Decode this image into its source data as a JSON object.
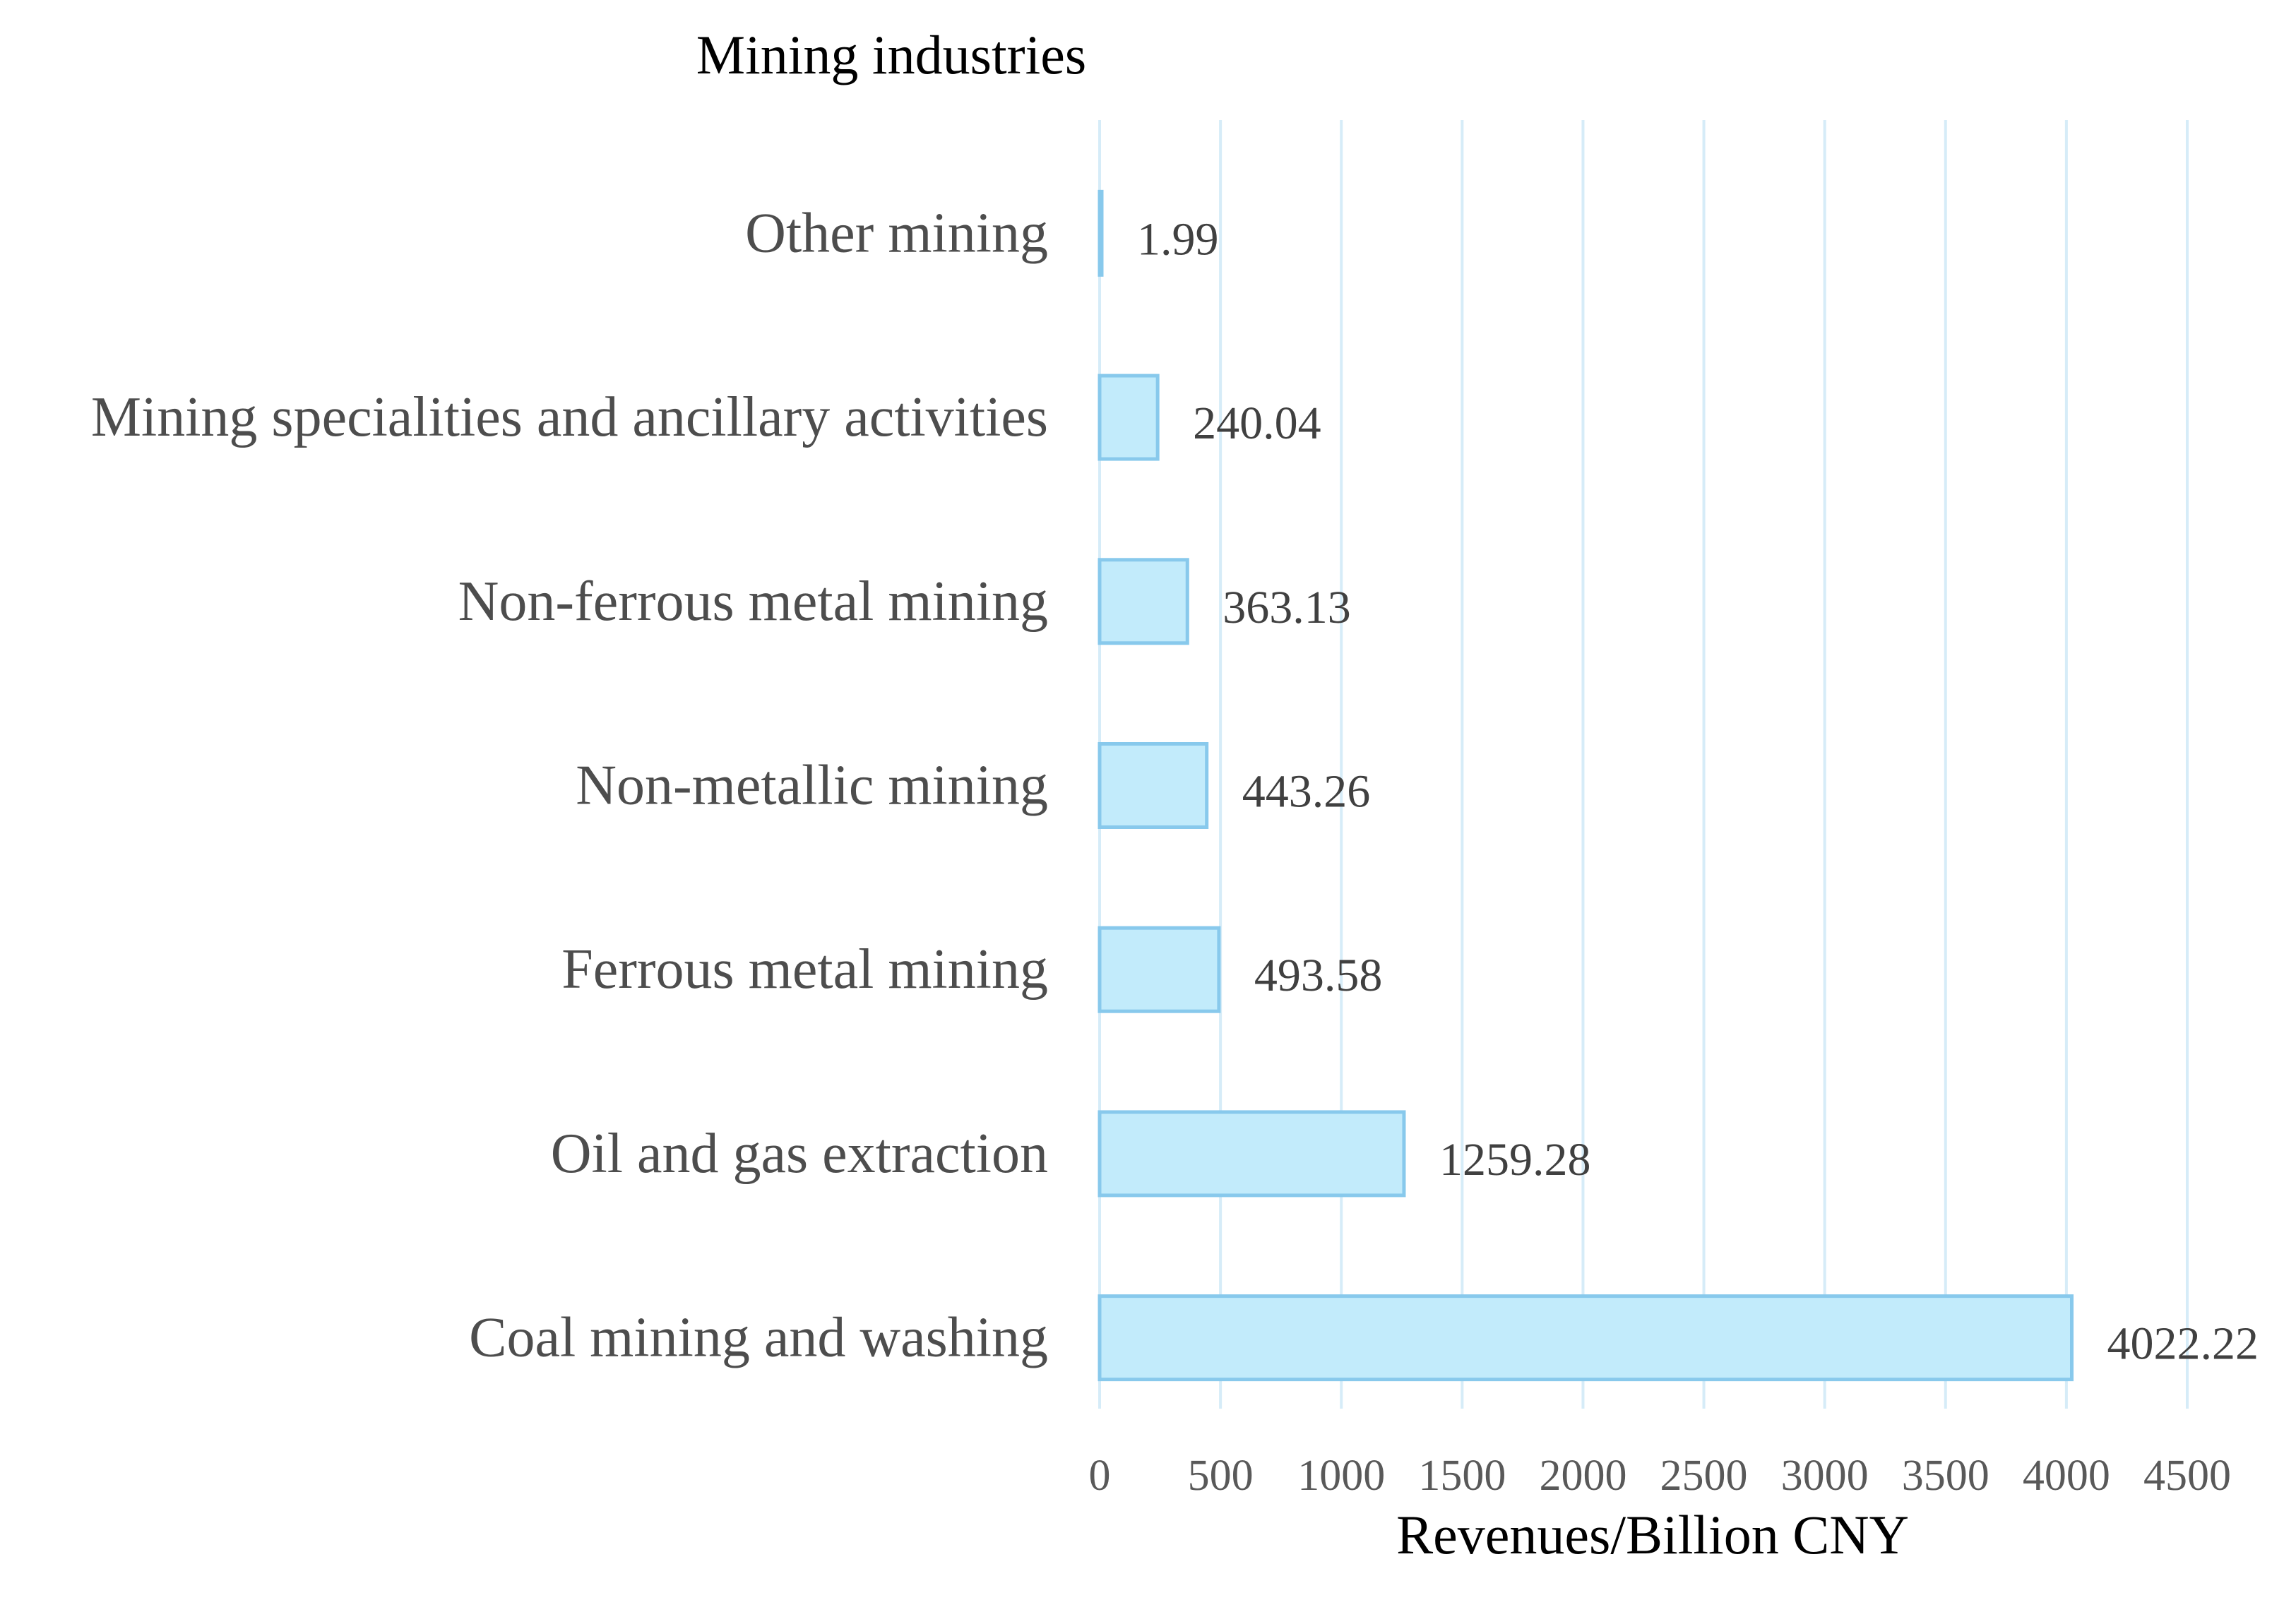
{
  "chart_data": {
    "type": "bar",
    "orientation": "horizontal",
    "title": "Mining industries",
    "xlabel": "Revenues/Billion CNY",
    "ylabel": "",
    "xlim": [
      0,
      4500
    ],
    "xticks": [
      0,
      500,
      1000,
      1500,
      2000,
      2500,
      3000,
      3500,
      4000,
      4500
    ],
    "grid": true,
    "legend": "none",
    "categories": [
      "Other mining",
      "Mining specialities and ancillary activities",
      "Non-ferrous metal mining",
      "Non-metallic mining",
      "Ferrous metal mining",
      "Oil and gas extraction",
      "Coal mining and washing"
    ],
    "values": [
      1.99,
      240.04,
      363.13,
      443.26,
      493.58,
      1259.28,
      4022.22
    ],
    "value_labels": [
      "1.99",
      "240.04",
      "363.13",
      "443.26",
      "493.58",
      "1259.28",
      "4022.22"
    ],
    "colors": {
      "bar_fill": "#c2ebfb",
      "bar_stroke": "#88c9ec",
      "gridline": "#d6ecf8"
    }
  }
}
